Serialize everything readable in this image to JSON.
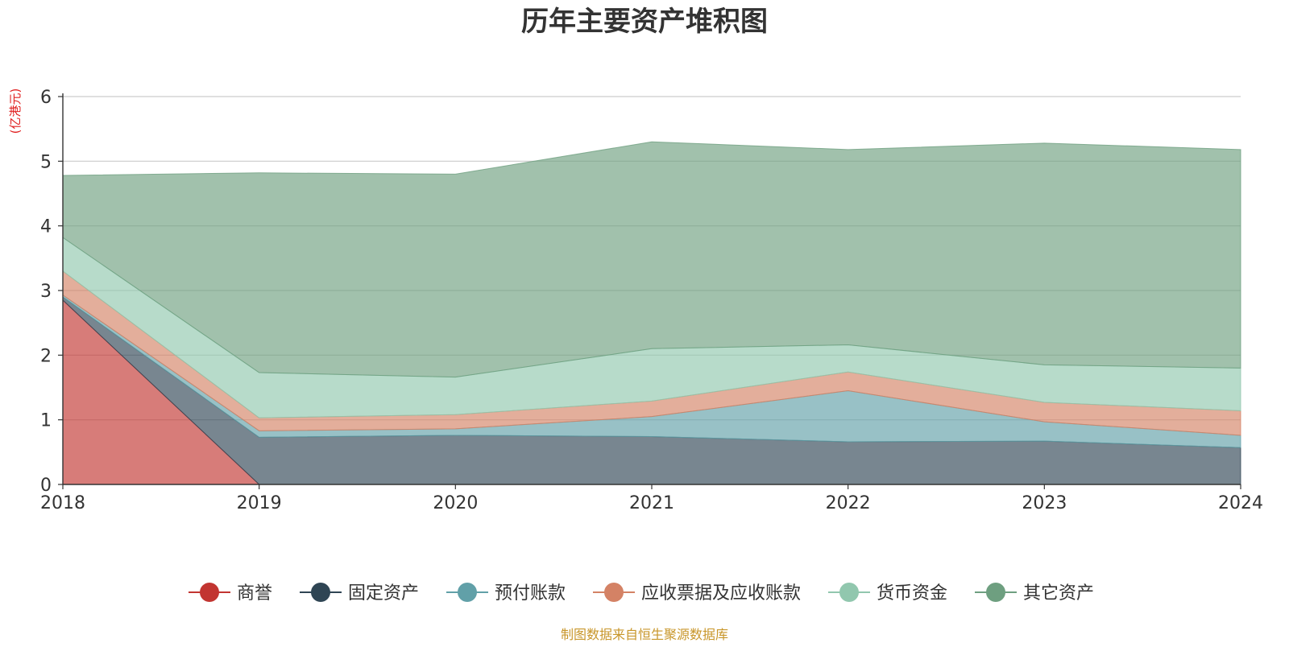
{
  "chart_data": {
    "type": "area",
    "stacked": true,
    "title": "历年主要资产堆积图",
    "unit_label": "(亿港元)",
    "source": "制图数据来自恒生聚源数据库",
    "x": [
      "2018",
      "2019",
      "2020",
      "2021",
      "2022",
      "2023",
      "2024"
    ],
    "y_ticks": [
      "0",
      "1",
      "2",
      "3",
      "4",
      "5",
      "6"
    ],
    "ylim": [
      0,
      6
    ],
    "grid": true,
    "legend_position": "bottom",
    "series": [
      {
        "name": "商誉",
        "color": "#c23531",
        "values": [
          2.85,
          0,
          0,
          0,
          0,
          0,
          0
        ]
      },
      {
        "name": "固定资产",
        "color": "#2f4554",
        "values": [
          0.05,
          0.73,
          0.76,
          0.74,
          0.66,
          0.67,
          0.57
        ]
      },
      {
        "name": "预付账款",
        "color": "#61a0a8",
        "values": [
          0.03,
          0.1,
          0.1,
          0.31,
          0.79,
          0.3,
          0.19
        ]
      },
      {
        "name": "应收票据及应收账款",
        "color": "#d48265",
        "values": [
          0.37,
          0.2,
          0.22,
          0.24,
          0.29,
          0.3,
          0.38
        ]
      },
      {
        "name": "货币资金",
        "color": "#91c7ae",
        "values": [
          0.52,
          0.7,
          0.58,
          0.81,
          0.42,
          0.58,
          0.66
        ]
      },
      {
        "name": "其它资产",
        "color": "#6e9f80",
        "values": [
          0.96,
          3.09,
          3.14,
          3.2,
          3.02,
          3.43,
          3.38
        ]
      }
    ]
  }
}
